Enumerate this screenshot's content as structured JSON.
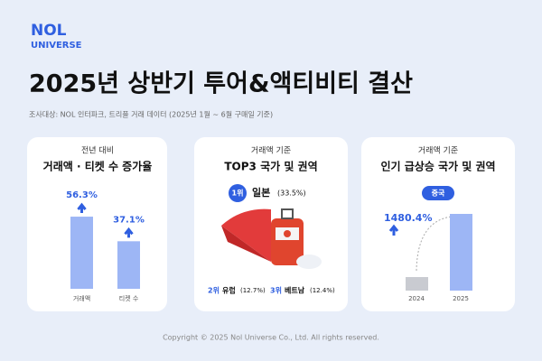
{
  "logo": {
    "line1": "NOL",
    "line2": "UNIVERSE"
  },
  "title": "2025년 상반기 투어&액티비티 결산",
  "source": "조사대상: NOL 인터파크, 트리플 거래 데이터 (2025년 1월 ~ 6월 구매일 기준)",
  "cards": [
    {
      "subtitle": "전년 대비",
      "title": "거래액 · 티켓 수 증가율",
      "bars": [
        {
          "label": "거래액",
          "value": 56.3,
          "value_label": "56.3%"
        },
        {
          "label": "티켓 수",
          "value": 37.1,
          "value_label": "37.1%"
        }
      ]
    },
    {
      "subtitle": "거래액 기준",
      "title": "TOP3 국가 및 권역",
      "first": {
        "rank": "1위",
        "name": "일본",
        "share": "(33.5%)"
      },
      "others": [
        {
          "rank": "2위",
          "name": "유럽",
          "share": "(12.7%)"
        },
        {
          "rank": "3위",
          "name": "베트남",
          "share": "(12.4%)"
        }
      ]
    },
    {
      "subtitle": "거래액 기준",
      "title": "인기 급상승 국가 및 권역",
      "badge": "중국",
      "growth": "1480.4%",
      "years": [
        "2024",
        "2025"
      ]
    }
  ],
  "footer": "Copyright © 2025 Nol Universe Co., Ltd. All rights reserved."
}
